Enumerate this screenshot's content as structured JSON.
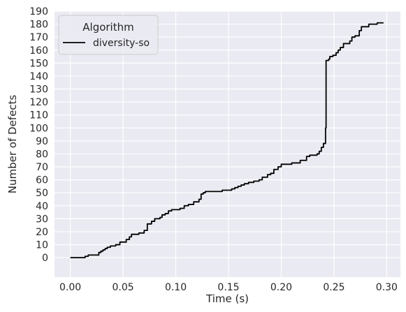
{
  "chart_data": {
    "type": "line",
    "xlabel": "Time (s)",
    "ylabel": "Number of Defects",
    "xlim": [
      -0.015,
      0.313
    ],
    "ylim": [
      -15,
      190
    ],
    "xticks": [
      "0.00",
      "0.05",
      "0.10",
      "0.15",
      "0.20",
      "0.25",
      "0.30"
    ],
    "yticks": [
      "0",
      "10",
      "20",
      "30",
      "40",
      "50",
      "60",
      "70",
      "80",
      "90",
      "100",
      "110",
      "120",
      "130",
      "140",
      "150",
      "160",
      "170",
      "180",
      "190"
    ],
    "grid": true,
    "legend": {
      "title": "Algorithm",
      "placement": "top-left"
    },
    "colors": {
      "background": "#eaeaf2",
      "grid": "#ffffff",
      "line": "#000000"
    },
    "series": [
      {
        "name": "diversity-so",
        "step": true,
        "points": [
          [
            0.0,
            0
          ],
          [
            0.014,
            1
          ],
          [
            0.017,
            2
          ],
          [
            0.02,
            2
          ],
          [
            0.027,
            4
          ],
          [
            0.029,
            5
          ],
          [
            0.031,
            6
          ],
          [
            0.033,
            7
          ],
          [
            0.035,
            8
          ],
          [
            0.038,
            9
          ],
          [
            0.041,
            9
          ],
          [
            0.043,
            10
          ],
          [
            0.047,
            12
          ],
          [
            0.051,
            12
          ],
          [
            0.053,
            14
          ],
          [
            0.056,
            16
          ],
          [
            0.058,
            18
          ],
          [
            0.065,
            19
          ],
          [
            0.069,
            19
          ],
          [
            0.07,
            21
          ],
          [
            0.073,
            26
          ],
          [
            0.077,
            28
          ],
          [
            0.08,
            30
          ],
          [
            0.085,
            31
          ],
          [
            0.087,
            33
          ],
          [
            0.09,
            34
          ],
          [
            0.093,
            36
          ],
          [
            0.096,
            37
          ],
          [
            0.104,
            38
          ],
          [
            0.108,
            40
          ],
          [
            0.112,
            41
          ],
          [
            0.117,
            43
          ],
          [
            0.122,
            45
          ],
          [
            0.124,
            49
          ],
          [
            0.126,
            50
          ],
          [
            0.128,
            51
          ],
          [
            0.144,
            52
          ],
          [
            0.15,
            52
          ],
          [
            0.153,
            53
          ],
          [
            0.156,
            54
          ],
          [
            0.159,
            55
          ],
          [
            0.162,
            56
          ],
          [
            0.165,
            57
          ],
          [
            0.169,
            58
          ],
          [
            0.174,
            59
          ],
          [
            0.179,
            60
          ],
          [
            0.182,
            62
          ],
          [
            0.187,
            64
          ],
          [
            0.19,
            65
          ],
          [
            0.193,
            68
          ],
          [
            0.197,
            70
          ],
          [
            0.2,
            72
          ],
          [
            0.204,
            72
          ],
          [
            0.21,
            73
          ],
          [
            0.218,
            75
          ],
          [
            0.224,
            78
          ],
          [
            0.227,
            79
          ],
          [
            0.234,
            80
          ],
          [
            0.236,
            82
          ],
          [
            0.238,
            85
          ],
          [
            0.24,
            88
          ],
          [
            0.242,
            100
          ],
          [
            0.2425,
            152
          ],
          [
            0.245,
            153
          ],
          [
            0.246,
            155
          ],
          [
            0.249,
            156
          ],
          [
            0.252,
            158
          ],
          [
            0.254,
            160
          ],
          [
            0.256,
            162
          ],
          [
            0.259,
            165
          ],
          [
            0.265,
            167
          ],
          [
            0.267,
            170
          ],
          [
            0.27,
            171
          ],
          [
            0.274,
            175
          ],
          [
            0.276,
            178
          ],
          [
            0.283,
            180
          ],
          [
            0.291,
            181
          ],
          [
            0.297,
            181
          ]
        ]
      }
    ]
  }
}
